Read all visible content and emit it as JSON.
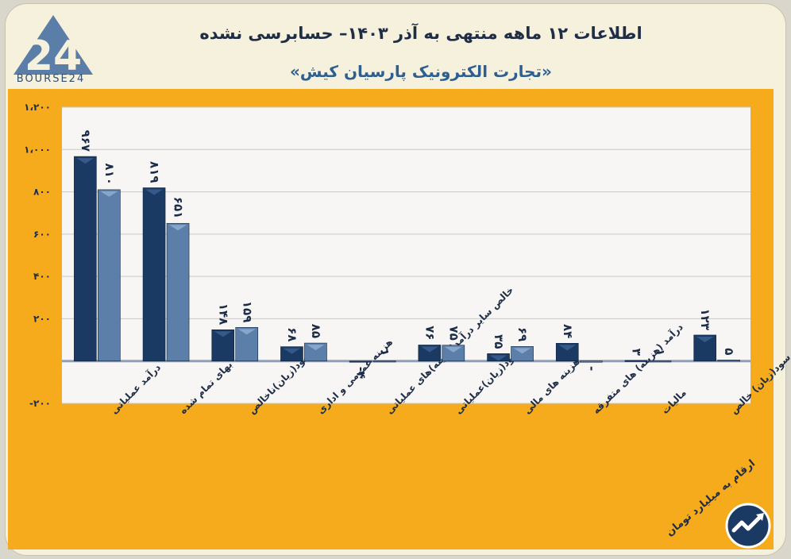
{
  "header": {
    "title": "اطلاعات ۱۲ ماهه منتهی به آذر ۱۴۰۳– حسابرسی نشده",
    "subtitle": "«تجارت الکترونیک پارسیان کیش»",
    "logo_text": "BOURSE24"
  },
  "note": "ارقام به میلیارد تومان",
  "colors": {
    "series_dark": "#1b3a63",
    "series_light": "#5b7fa9",
    "panel": "#f5ab1b",
    "plot_bg": "#f7f6f4"
  },
  "chart_data": {
    "type": "bar",
    "categories": [
      "درآمد عملیاتی",
      "بهای تمام شده",
      "سود(زیان)ناخالص",
      "هزینه عمومی و اداری",
      "خالص سایر درآمد(هزینه)های عملیاتی",
      "سود(زیان)عملیاتی",
      "هزینه های مالی",
      "درآمد (هزینه) های متفرقه",
      "مالیات",
      "سود(زیان) خالص"
    ],
    "series": [
      {
        "values": [
          967,
          819,
          148,
          68,
          -4,
          76,
          35,
          84,
          3,
          123
        ],
        "labels": [
          "۹۶۷",
          "۸۱۹",
          "۱۴۸",
          "۶۸",
          "-۴",
          "۷۶",
          "۳۵",
          "۸۴",
          "۳",
          "۱۲۳"
        ]
      },
      {
        "values": [
          810,
          651,
          159,
          85,
          1,
          75,
          69,
          -1,
          1,
          5
        ],
        "labels": [
          "۸۱۰",
          "۶۵۱",
          "۱۵۹",
          "۸۵",
          "۱",
          "۷۵",
          "۶۹",
          "-",
          "۱",
          "۵"
        ]
      }
    ],
    "ylim": [
      -200,
      1200
    ],
    "yticks": [
      -200,
      0,
      200,
      400,
      600,
      800,
      1000,
      1200
    ],
    "ytick_labels": [
      "-۲۰۰",
      "",
      "۲۰۰",
      "۴۰۰",
      "۶۰۰",
      "۸۰۰",
      "۱،۰۰۰",
      "۱،۲۰۰"
    ],
    "grid": true,
    "legend": "none"
  }
}
